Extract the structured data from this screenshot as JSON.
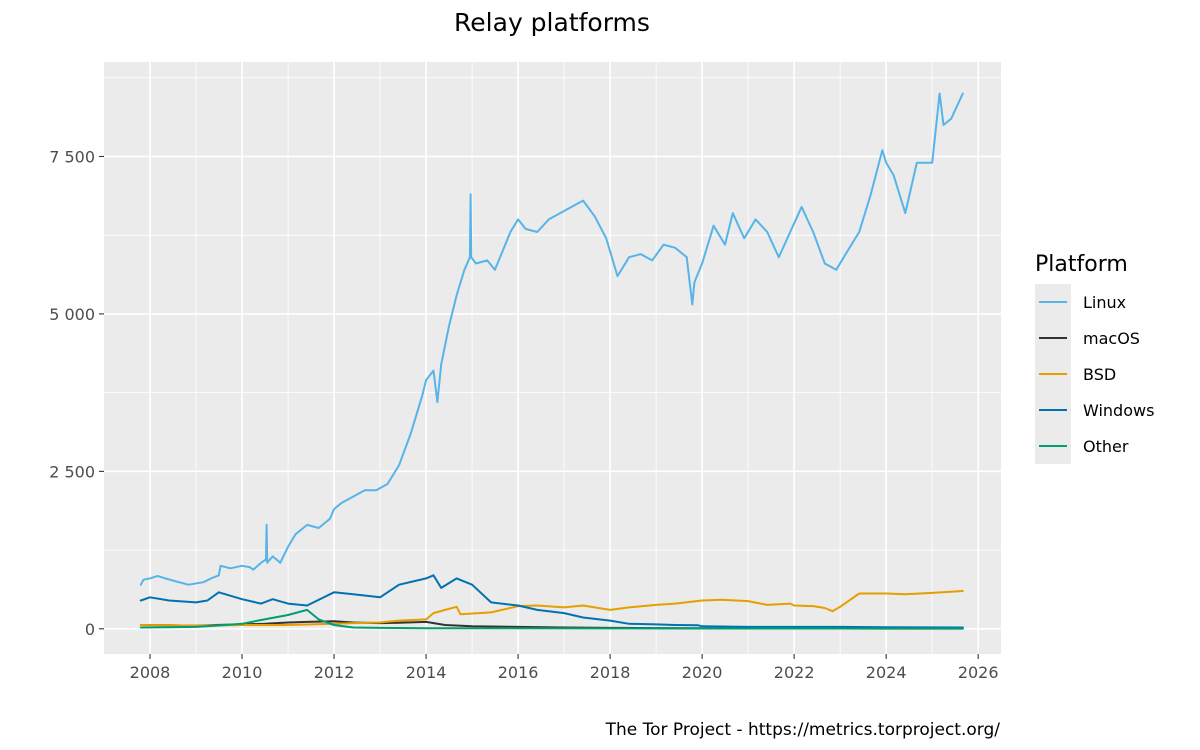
{
  "chart_data": {
    "type": "line",
    "title": "Relay platforms",
    "xlabel": "",
    "ylabel": "",
    "caption": "The Tor Project - https://metrics.torproject.org/",
    "legend": {
      "title": "Platform",
      "position": "right"
    },
    "xlim": [
      "2007-01-01",
      "2026-07-01"
    ],
    "ylim": [
      -400,
      9000
    ],
    "grid": true,
    "x_ticks": [
      {
        "value": "2008-01-01",
        "label": "2008"
      },
      {
        "value": "2010-01-01",
        "label": "2010"
      },
      {
        "value": "2012-01-01",
        "label": "2012"
      },
      {
        "value": "2014-01-01",
        "label": "2014"
      },
      {
        "value": "2016-01-01",
        "label": "2016"
      },
      {
        "value": "2018-01-01",
        "label": "2018"
      },
      {
        "value": "2020-01-01",
        "label": "2020"
      },
      {
        "value": "2022-01-01",
        "label": "2022"
      },
      {
        "value": "2024-01-01",
        "label": "2024"
      },
      {
        "value": "2026-01-01",
        "label": "2026"
      }
    ],
    "y_ticks": [
      {
        "value": 0,
        "label": "0"
      },
      {
        "value": 2500,
        "label": "2 500"
      },
      {
        "value": 5000,
        "label": "5 000"
      },
      {
        "value": 7500,
        "label": "7 500"
      }
    ],
    "series": [
      {
        "name": "Linux",
        "color": "#56B4E9",
        "points": [
          [
            "2007-10-20",
            700
          ],
          [
            "2007-11-10",
            780
          ],
          [
            "2008-01-01",
            800
          ],
          [
            "2008-03-01",
            840
          ],
          [
            "2008-05-01",
            800
          ],
          [
            "2008-08-01",
            750
          ],
          [
            "2008-11-01",
            700
          ],
          [
            "2009-03-01",
            740
          ],
          [
            "2009-05-01",
            800
          ],
          [
            "2009-07-01",
            850
          ],
          [
            "2009-07-15",
            1000
          ],
          [
            "2009-10-01",
            960
          ],
          [
            "2010-01-01",
            1000
          ],
          [
            "2010-03-01",
            980
          ],
          [
            "2010-04-01",
            940
          ],
          [
            "2010-06-01",
            1050
          ],
          [
            "2010-07-10",
            1100
          ],
          [
            "2010-07-15",
            1650
          ],
          [
            "2010-07-20",
            1050
          ],
          [
            "2010-09-01",
            1150
          ],
          [
            "2010-11-01",
            1050
          ],
          [
            "2011-01-01",
            1300
          ],
          [
            "2011-03-01",
            1500
          ],
          [
            "2011-06-01",
            1650
          ],
          [
            "2011-09-01",
            1600
          ],
          [
            "2011-12-01",
            1750
          ],
          [
            "2012-01-01",
            1900
          ],
          [
            "2012-03-01",
            2000
          ],
          [
            "2012-06-01",
            2100
          ],
          [
            "2012-09-01",
            2200
          ],
          [
            "2012-12-01",
            2200
          ],
          [
            "2013-03-01",
            2300
          ],
          [
            "2013-06-01",
            2600
          ],
          [
            "2013-09-01",
            3100
          ],
          [
            "2013-12-01",
            3700
          ],
          [
            "2014-01-01",
            3950
          ],
          [
            "2014-03-01",
            4100
          ],
          [
            "2014-04-01",
            3600
          ],
          [
            "2014-05-01",
            4200
          ],
          [
            "2014-07-01",
            4800
          ],
          [
            "2014-09-01",
            5300
          ],
          [
            "2014-11-01",
            5700
          ],
          [
            "2014-12-15",
            5900
          ],
          [
            "2014-12-20",
            6900
          ],
          [
            "2014-12-25",
            5900
          ],
          [
            "2015-02-01",
            5800
          ],
          [
            "2015-05-01",
            5850
          ],
          [
            "2015-07-01",
            5700
          ],
          [
            "2015-09-01",
            6000
          ],
          [
            "2015-11-01",
            6300
          ],
          [
            "2016-01-01",
            6500
          ],
          [
            "2016-03-01",
            6350
          ],
          [
            "2016-06-01",
            6300
          ],
          [
            "2016-09-01",
            6500
          ],
          [
            "2016-12-01",
            6600
          ],
          [
            "2017-03-01",
            6700
          ],
          [
            "2017-06-01",
            6800
          ],
          [
            "2017-09-01",
            6550
          ],
          [
            "2017-12-01",
            6200
          ],
          [
            "2018-03-01",
            5600
          ],
          [
            "2018-06-01",
            5900
          ],
          [
            "2018-09-01",
            5950
          ],
          [
            "2018-12-01",
            5850
          ],
          [
            "2019-03-01",
            6100
          ],
          [
            "2019-06-01",
            6050
          ],
          [
            "2019-09-01",
            5900
          ],
          [
            "2019-10-15",
            5150
          ],
          [
            "2019-11-01",
            5500
          ],
          [
            "2020-01-01",
            5800
          ],
          [
            "2020-04-01",
            6400
          ],
          [
            "2020-07-01",
            6100
          ],
          [
            "2020-09-01",
            6600
          ],
          [
            "2020-12-01",
            6200
          ],
          [
            "2021-03-01",
            6500
          ],
          [
            "2021-06-01",
            6300
          ],
          [
            "2021-09-01",
            5900
          ],
          [
            "2021-12-01",
            6300
          ],
          [
            "2022-03-01",
            6700
          ],
          [
            "2022-06-01",
            6300
          ],
          [
            "2022-09-01",
            5800
          ],
          [
            "2022-12-01",
            5700
          ],
          [
            "2023-03-01",
            6000
          ],
          [
            "2023-06-01",
            6300
          ],
          [
            "2023-09-01",
            6900
          ],
          [
            "2023-12-01",
            7600
          ],
          [
            "2024-01-01",
            7400
          ],
          [
            "2024-03-01",
            7200
          ],
          [
            "2024-06-01",
            6600
          ],
          [
            "2024-09-01",
            7400
          ],
          [
            "2024-12-01",
            7400
          ],
          [
            "2025-01-01",
            7400
          ],
          [
            "2025-03-01",
            8500
          ],
          [
            "2025-04-01",
            8000
          ],
          [
            "2025-06-01",
            8100
          ],
          [
            "2025-09-01",
            8500
          ]
        ]
      },
      {
        "name": "macOS",
        "color": "#333333",
        "points": [
          [
            "2007-10-20",
            60
          ],
          [
            "2008-06-01",
            55
          ],
          [
            "2009-01-01",
            50
          ],
          [
            "2009-06-01",
            60
          ],
          [
            "2010-01-01",
            70
          ],
          [
            "2010-07-01",
            80
          ],
          [
            "2011-01-01",
            100
          ],
          [
            "2011-06-01",
            110
          ],
          [
            "2012-01-01",
            120
          ],
          [
            "2012-06-01",
            100
          ],
          [
            "2013-01-01",
            90
          ],
          [
            "2013-06-01",
            95
          ],
          [
            "2014-01-01",
            110
          ],
          [
            "2014-06-01",
            60
          ],
          [
            "2015-01-01",
            40
          ],
          [
            "2016-01-01",
            30
          ],
          [
            "2017-01-01",
            20
          ],
          [
            "2018-01-01",
            15
          ],
          [
            "2019-01-01",
            12
          ],
          [
            "2020-01-01",
            10
          ],
          [
            "2021-01-01",
            8
          ],
          [
            "2022-01-01",
            6
          ],
          [
            "2023-01-01",
            5
          ],
          [
            "2024-01-01",
            4
          ],
          [
            "2025-09-01",
            3
          ]
        ]
      },
      {
        "name": "BSD",
        "color": "#E69F00",
        "points": [
          [
            "2007-10-20",
            60
          ],
          [
            "2008-06-01",
            55
          ],
          [
            "2009-01-01",
            50
          ],
          [
            "2010-01-01",
            60
          ],
          [
            "2011-01-01",
            60
          ],
          [
            "2012-01-01",
            80
          ],
          [
            "2012-06-01",
            90
          ],
          [
            "2013-01-01",
            100
          ],
          [
            "2013-06-01",
            130
          ],
          [
            "2014-01-01",
            150
          ],
          [
            "2014-03-01",
            250
          ],
          [
            "2014-06-01",
            300
          ],
          [
            "2014-09-01",
            350
          ],
          [
            "2014-10-01",
            230
          ],
          [
            "2015-06-01",
            260
          ],
          [
            "2016-01-01",
            360
          ],
          [
            "2016-06-01",
            370
          ],
          [
            "2017-01-01",
            340
          ],
          [
            "2017-06-01",
            370
          ],
          [
            "2018-01-01",
            300
          ],
          [
            "2018-06-01",
            340
          ],
          [
            "2019-01-01",
            380
          ],
          [
            "2019-06-01",
            400
          ],
          [
            "2020-01-01",
            450
          ],
          [
            "2020-06-01",
            460
          ],
          [
            "2021-01-01",
            440
          ],
          [
            "2021-06-01",
            380
          ],
          [
            "2021-12-01",
            400
          ],
          [
            "2022-01-01",
            370
          ],
          [
            "2022-06-01",
            360
          ],
          [
            "2022-09-01",
            330
          ],
          [
            "2022-11-01",
            280
          ],
          [
            "2023-01-01",
            350
          ],
          [
            "2023-06-01",
            560
          ],
          [
            "2024-01-01",
            560
          ],
          [
            "2024-06-01",
            550
          ],
          [
            "2025-01-01",
            570
          ],
          [
            "2025-09-01",
            600
          ]
        ]
      },
      {
        "name": "Windows",
        "color": "#0072B2",
        "points": [
          [
            "2007-10-20",
            450
          ],
          [
            "2008-01-01",
            500
          ],
          [
            "2008-06-01",
            450
          ],
          [
            "2009-01-01",
            420
          ],
          [
            "2009-04-01",
            450
          ],
          [
            "2009-07-01",
            580
          ],
          [
            "2010-01-01",
            470
          ],
          [
            "2010-06-01",
            400
          ],
          [
            "2010-09-01",
            470
          ],
          [
            "2011-01-01",
            400
          ],
          [
            "2011-06-01",
            370
          ],
          [
            "2012-01-01",
            580
          ],
          [
            "2012-06-01",
            550
          ],
          [
            "2013-01-01",
            500
          ],
          [
            "2013-06-01",
            700
          ],
          [
            "2014-01-01",
            800
          ],
          [
            "2014-03-01",
            850
          ],
          [
            "2014-05-01",
            650
          ],
          [
            "2014-09-01",
            800
          ],
          [
            "2015-01-01",
            700
          ],
          [
            "2015-06-01",
            420
          ],
          [
            "2016-01-01",
            370
          ],
          [
            "2016-06-01",
            300
          ],
          [
            "2017-01-01",
            250
          ],
          [
            "2017-06-01",
            180
          ],
          [
            "2018-01-01",
            130
          ],
          [
            "2018-06-01",
            80
          ],
          [
            "2019-01-01",
            70
          ],
          [
            "2019-06-01",
            60
          ],
          [
            "2019-12-01",
            55
          ],
          [
            "2020-01-01",
            40
          ],
          [
            "2021-01-01",
            30
          ],
          [
            "2022-01-01",
            30
          ],
          [
            "2023-01-01",
            30
          ],
          [
            "2024-01-01",
            25
          ],
          [
            "2025-09-01",
            20
          ]
        ]
      },
      {
        "name": "Other",
        "color": "#009E73",
        "points": [
          [
            "2007-10-20",
            20
          ],
          [
            "2008-06-01",
            25
          ],
          [
            "2009-01-01",
            30
          ],
          [
            "2009-06-01",
            50
          ],
          [
            "2010-01-01",
            80
          ],
          [
            "2010-06-01",
            140
          ],
          [
            "2011-01-01",
            220
          ],
          [
            "2011-06-01",
            300
          ],
          [
            "2011-09-01",
            150
          ],
          [
            "2012-01-01",
            60
          ],
          [
            "2012-06-01",
            20
          ],
          [
            "2013-01-01",
            15
          ],
          [
            "2014-01-01",
            10
          ],
          [
            "2015-01-01",
            10
          ],
          [
            "2016-01-01",
            8
          ],
          [
            "2018-01-01",
            6
          ],
          [
            "2020-01-01",
            5
          ],
          [
            "2022-01-01",
            5
          ],
          [
            "2024-01-01",
            5
          ],
          [
            "2025-09-01",
            5
          ]
        ]
      }
    ]
  }
}
